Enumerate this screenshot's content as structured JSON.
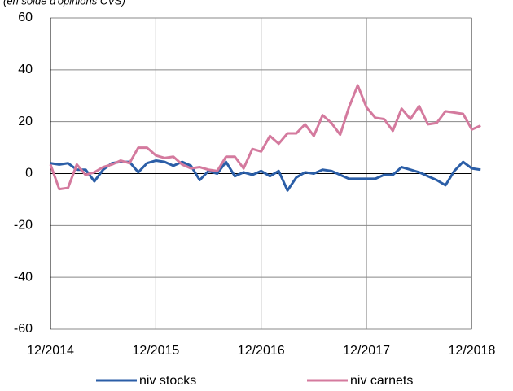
{
  "chart_data": {
    "type": "line",
    "subtitle": "(en solde d'opinions CVS)",
    "x": [
      "12/2014",
      "01/2015",
      "02/2015",
      "03/2015",
      "04/2015",
      "05/2015",
      "06/2015",
      "07/2015",
      "08/2015",
      "09/2015",
      "10/2015",
      "11/2015",
      "12/2015",
      "01/2016",
      "02/2016",
      "03/2016",
      "04/2016",
      "05/2016",
      "06/2016",
      "07/2016",
      "08/2016",
      "09/2016",
      "10/2016",
      "11/2016",
      "12/2016",
      "01/2017",
      "02/2017",
      "03/2017",
      "04/2017",
      "05/2017",
      "06/2017",
      "07/2017",
      "08/2017",
      "09/2017",
      "10/2017",
      "11/2017",
      "12/2017",
      "01/2018",
      "02/2018",
      "03/2018",
      "04/2018",
      "05/2018",
      "06/2018",
      "07/2018",
      "08/2018",
      "09/2018",
      "10/2018",
      "11/2018",
      "12/2018",
      "01/2019"
    ],
    "series": [
      {
        "name": "niv stocks",
        "color": "#2b5ea7",
        "values": [
          4,
          3.5,
          4,
          1.5,
          1.5,
          -3,
          1.5,
          4,
          4.5,
          4.5,
          0.5,
          4,
          5,
          4.5,
          3,
          4.5,
          3,
          -2.5,
          1,
          0,
          4.5,
          -1,
          0.5,
          -0.5,
          1,
          -1,
          1,
          -6.5,
          -1.5,
          0.5,
          0,
          1.5,
          1,
          -0.5,
          -2,
          -2,
          -2,
          -2,
          -0.5,
          -0.5,
          2.5,
          1.5,
          0.5,
          -1,
          -2.5,
          -4.5,
          1,
          4.5,
          2,
          1.5
        ]
      },
      {
        "name": "niv carnets",
        "color": "#d47a9e",
        "values": [
          3.5,
          -6,
          -5.5,
          3.5,
          -0.5,
          0.5,
          2.5,
          3.5,
          5,
          4,
          10,
          10,
          7,
          6,
          6.5,
          3.5,
          2,
          2.5,
          1.5,
          1,
          6.5,
          6.5,
          2,
          9.5,
          8.5,
          14.5,
          11.5,
          15.5,
          15.5,
          19,
          14.5,
          22.5,
          19.5,
          15,
          25.5,
          34,
          25.5,
          21.5,
          21,
          16.5,
          25,
          21,
          26,
          19,
          19.5,
          24,
          23.5,
          23,
          17,
          18.5
        ]
      }
    ],
    "xlim": [
      "12/2014",
      "01/2019"
    ],
    "xticks": [
      "12/2014",
      "12/2015",
      "12/2016",
      "12/2017",
      "12/2018"
    ],
    "ylim": [
      -60,
      60
    ],
    "yticks": [
      -60,
      -40,
      -20,
      0,
      20,
      40,
      60
    ],
    "grid": true,
    "legend": "bottom"
  }
}
